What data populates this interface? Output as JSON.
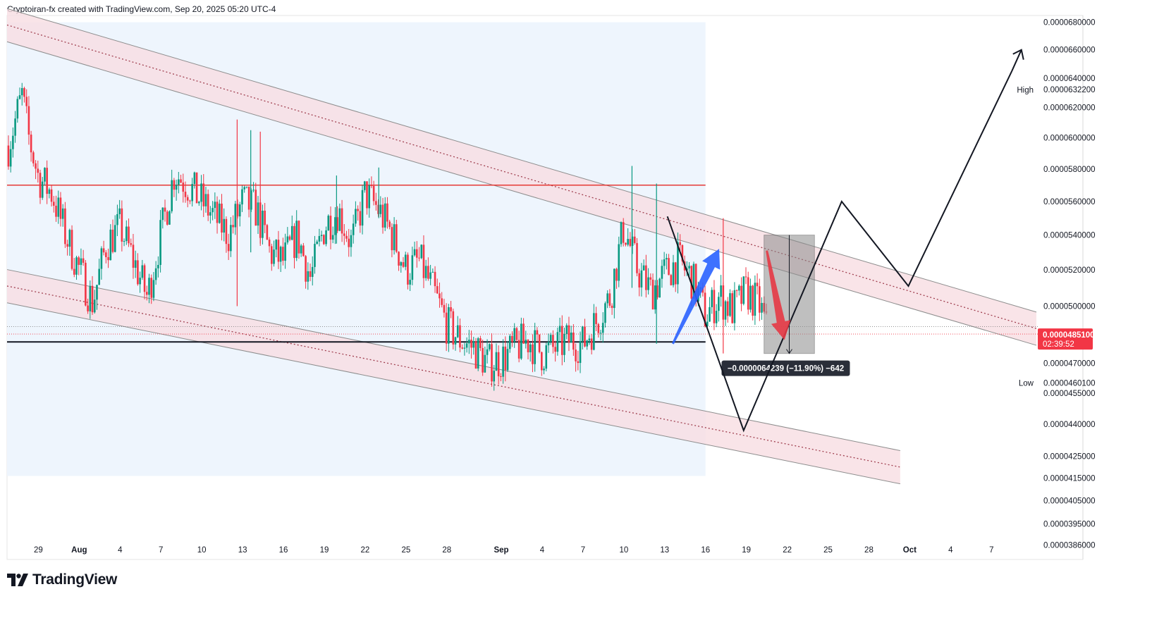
{
  "header": {
    "credit": "Cryptoiran-fx created with TradingView.com, Sep 20, 2025 05:20 UTC-4"
  },
  "branding": {
    "logo_icon": "tradingview-logo-icon",
    "logo_text": "TradingView"
  },
  "colors": {
    "up": "#089981",
    "down": "#f23645",
    "channel_fill": "#f7dde2",
    "channel_edge": "#8d8d8d",
    "shade": "#eef5fd",
    "resistance": "#e53935",
    "support": "#131722",
    "blue_arrow": "#2962ff",
    "red_arrow": "#e53945",
    "price_tag": "#f23645"
  },
  "chart_data": {
    "type": "candlestick",
    "y_scale": "log",
    "ylim": [
      3.8e-05,
      6.85e-05
    ],
    "y_ticks": [
      "0.0000680000",
      "0.0000660000",
      "0.0000640000",
      "0.0000632200",
      "0.0000620000",
      "0.0000600000",
      "0.0000580000",
      "0.0000560000",
      "0.0000540000",
      "0.0000520000",
      "0.0000500000",
      "0.0000470000",
      "0.0000460100",
      "0.0000455000",
      "0.0000440000",
      "0.0000425000",
      "0.0000415000",
      "0.0000405000",
      "0.0000395000",
      "0.0000386000"
    ],
    "x_ticks": [
      {
        "label": "29",
        "day": 0
      },
      {
        "label": "Aug",
        "day": 3,
        "bold": true
      },
      {
        "label": "4",
        "day": 6
      },
      {
        "label": "7",
        "day": 9
      },
      {
        "label": "10",
        "day": 12
      },
      {
        "label": "13",
        "day": 15
      },
      {
        "label": "16",
        "day": 18
      },
      {
        "label": "19",
        "day": 21
      },
      {
        "label": "22",
        "day": 24
      },
      {
        "label": "25",
        "day": 27
      },
      {
        "label": "28",
        "day": 30
      },
      {
        "label": "Sep",
        "day": 34,
        "bold": true
      },
      {
        "label": "4",
        "day": 37
      },
      {
        "label": "7",
        "day": 40
      },
      {
        "label": "10",
        "day": 43
      },
      {
        "label": "13",
        "day": 46
      },
      {
        "label": "16",
        "day": 49
      },
      {
        "label": "19",
        "day": 52
      },
      {
        "label": "22",
        "day": 55
      },
      {
        "label": "25",
        "day": 58
      },
      {
        "label": "28",
        "day": 61
      },
      {
        "label": "Oct",
        "day": 64,
        "bold": true
      },
      {
        "label": "4",
        "day": 67
      },
      {
        "label": "7",
        "day": 70
      }
    ],
    "x_range_days": [
      -2.3,
      73.3
    ],
    "price_path": [
      [
        -2.2,
        5.95e-05
      ],
      [
        -1.2,
        6.28e-05
      ],
      [
        -0.7,
        6e-05
      ],
      [
        0,
        5.75e-05
      ],
      [
        1,
        5.65e-05
      ],
      [
        2,
        5.4e-05
      ],
      [
        3,
        5.2e-05
      ],
      [
        4,
        5.02e-05
      ],
      [
        5,
        5.35e-05
      ],
      [
        6,
        5.45e-05
      ],
      [
        7,
        5.25e-05
      ],
      [
        8,
        5.05e-05
      ],
      [
        9,
        5.4e-05
      ],
      [
        10,
        5.78e-05
      ],
      [
        11,
        5.7e-05
      ],
      [
        12,
        5.6e-05
      ],
      [
        13,
        5.5e-05
      ],
      [
        14,
        5.4e-05
      ],
      [
        15,
        5.6e-05
      ],
      [
        16,
        5.55e-05
      ],
      [
        17,
        5.3e-05
      ],
      [
        18,
        5.25e-05
      ],
      [
        19,
        5.4e-05
      ],
      [
        20,
        5.15e-05
      ],
      [
        21,
        5.45e-05
      ],
      [
        22,
        5.55e-05
      ],
      [
        23,
        5.35e-05
      ],
      [
        24,
        5.65e-05
      ],
      [
        25,
        5.55e-05
      ],
      [
        26,
        5.4e-05
      ],
      [
        27,
        5.2e-05
      ],
      [
        28,
        5.25e-05
      ],
      [
        29,
        5.08e-05
      ],
      [
        30,
        4.9e-05
      ],
      [
        31,
        4.82e-05
      ],
      [
        32,
        4.78e-05
      ],
      [
        33,
        4.7e-05
      ],
      [
        34,
        4.72e-05
      ],
      [
        35,
        4.78e-05
      ],
      [
        36,
        4.82e-05
      ],
      [
        37,
        4.75e-05
      ],
      [
        38,
        4.78e-05
      ],
      [
        39,
        4.82e-05
      ],
      [
        40,
        4.8e-05
      ],
      [
        41,
        4.92e-05
      ],
      [
        42,
        5.05e-05
      ],
      [
        43,
        5.45e-05
      ],
      [
        44,
        5.2e-05
      ],
      [
        45,
        5.08e-05
      ],
      [
        46,
        5.18e-05
      ],
      [
        47,
        5.25e-05
      ],
      [
        48,
        5.15e-05
      ],
      [
        49,
        4.95e-05
      ],
      [
        50,
        5.05e-05
      ],
      [
        51,
        4.98e-05
      ],
      [
        52,
        5.08e-05
      ],
      [
        53,
        5e-05
      ],
      [
        53.6,
        4.85e-05
      ]
    ],
    "spikes": [
      {
        "day": 14.6,
        "high": 6.12e-05,
        "low": 5e-05
      },
      {
        "day": 15.6,
        "high": 6.05e-05,
        "low": 5.3e-05
      },
      {
        "day": 16.3,
        "high": 6.04e-05,
        "low": 5.35e-05
      },
      {
        "day": 21.9,
        "high": 5.76e-05,
        "low": 5.35e-05
      },
      {
        "day": 25,
        "high": 5.81e-05,
        "low": 5.5e-05
      },
      {
        "day": 43.6,
        "high": 5.82e-05,
        "low": 5.1e-05
      },
      {
        "day": 45.4,
        "high": 5.71e-05,
        "low": 4.8e-05
      },
      {
        "day": 50.3,
        "high": 5.5e-05,
        "low": 4.75e-05
      }
    ],
    "current_price": {
      "value": "0.0000485100",
      "countdown": "02:39:52"
    },
    "resistance": 5.7e-05,
    "support": 4.81e-05,
    "channel_upper": {
      "start": [
        -2.3,
        6.78e-05
      ],
      "end": [
        73.3,
        4.88e-05
      ],
      "half_width": 0.018
    },
    "channel_lower": {
      "start": [
        -2.3,
        5.11e-05
      ],
      "end": [
        63.3,
        4.2e-05
      ],
      "half_width": 0.018
    },
    "shade": {
      "from_day": -2.3,
      "to_day": 49,
      "top": 6.8e-05,
      "bottom": 4.16e-05
    },
    "projection_path": [
      [
        46.2,
        5.51e-05
      ],
      [
        51.8,
        4.37e-05
      ],
      [
        59,
        5.6e-05
      ],
      [
        63.9,
        5.11e-05
      ],
      [
        71.5,
        6.45e-05
      ]
    ],
    "projection_arrow_tip": [
      72.2,
      6.6e-05
    ],
    "measure_box": {
      "from_day": 53.3,
      "to_day": 57,
      "top": 5.4e-05,
      "bottom": 4.75e-05,
      "label": "−0.0000064239 (−11.90%) −642"
    },
    "blue_arrow": {
      "from": [
        46.6,
        4.8e-05
      ],
      "to": [
        50,
        5.32e-05
      ]
    },
    "red_arrow": {
      "from": [
        53.5,
        5.31e-05
      ],
      "to": [
        54.8,
        4.82e-05
      ]
    },
    "high_marker": {
      "label": "High",
      "value": 6.32e-05
    },
    "low_marker": {
      "label": "Low",
      "value": 4.6e-05
    }
  }
}
